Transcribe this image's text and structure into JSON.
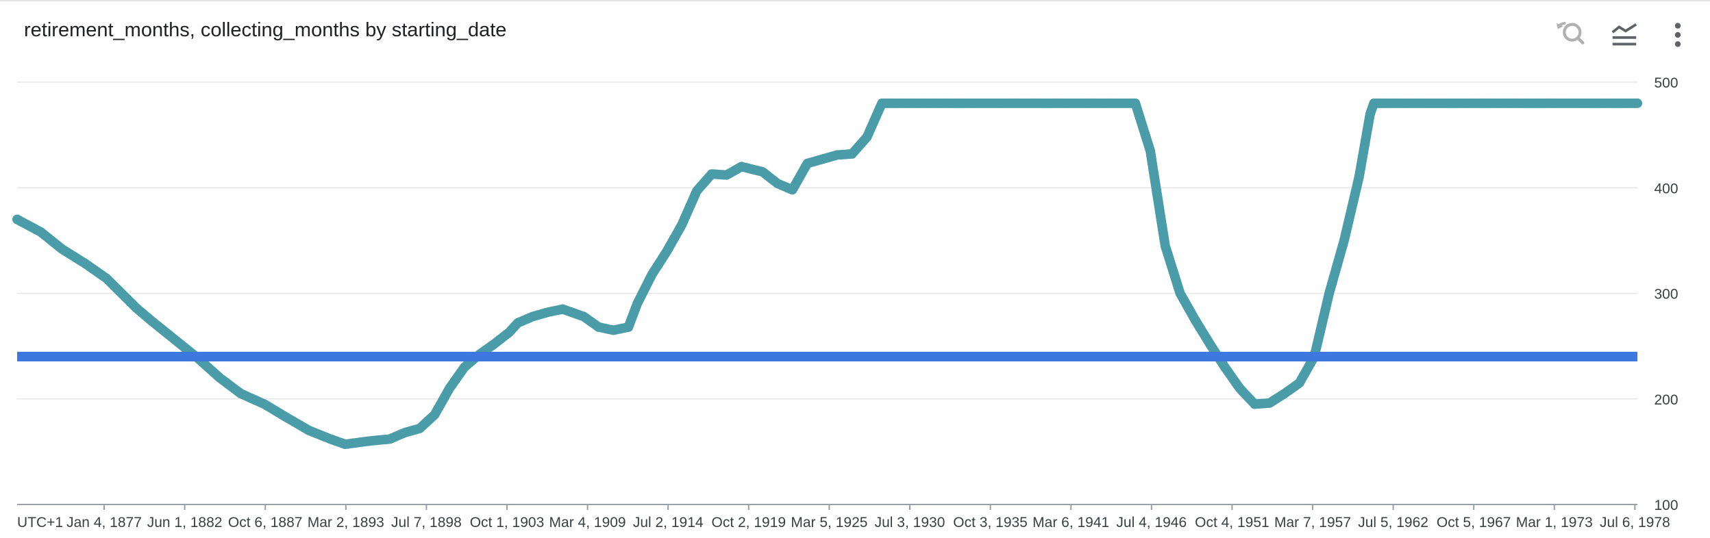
{
  "header": {
    "title": "retirement_months, collecting_months by starting_date",
    "icons": [
      "zoom-reset-icon",
      "series-toggle-icon",
      "more-vert-icon"
    ]
  },
  "colors": {
    "series_teal": "#4a9ca8",
    "series_blue": "#3c78e0",
    "grid": "#e6e6e6",
    "axis_text": "#3c4043",
    "icon_disabled": "#b0b0b0",
    "icon": "#5f6368"
  },
  "chart_data": {
    "type": "scatter",
    "title": "retirement_months, collecting_months by starting_date",
    "x_axis": {
      "type": "date",
      "timezone_label": "UTC+1",
      "tick_labels": [
        "Jan 4, 1877",
        "Jun 1, 1882",
        "Oct 6, 1887",
        "Mar 2, 1893",
        "Jul 7, 1898",
        "Oct 1, 1903",
        "Mar 4, 1909",
        "Jul 2, 1914",
        "Oct 2, 1919",
        "Mar 5, 1925",
        "Jul 3, 1930",
        "Oct 3, 1935",
        "Mar 6, 1941",
        "Jul 4, 1946",
        "Oct 4, 1951",
        "Mar 7, 1957",
        "Jul 5, 1962",
        "Oct 5, 1967",
        "Mar 1, 1973",
        "Jul 6, 1978"
      ],
      "range": [
        "1871-06-01",
        "1980-02-01"
      ]
    },
    "y_axis": {
      "position": "right",
      "tick_labels": [
        "500",
        "400",
        "300",
        "200",
        "100"
      ],
      "ticks": [
        500,
        400,
        300,
        200,
        100
      ],
      "ylim": [
        100,
        500
      ]
    },
    "grid": true,
    "series": [
      {
        "key": "teal",
        "style": "dense-dots",
        "points": [
          [
            "1871-06-01",
            370
          ],
          [
            "1873-01-01",
            358
          ],
          [
            "1874-06-01",
            342
          ],
          [
            "1876-01-01",
            328
          ],
          [
            "1877-06-01",
            314
          ],
          [
            "1878-06-01",
            300
          ],
          [
            "1879-06-01",
            286
          ],
          [
            "1880-06-01",
            274
          ],
          [
            "1882-01-01",
            256
          ],
          [
            "1883-06-01",
            240
          ],
          [
            "1885-01-01",
            220
          ],
          [
            "1886-06-01",
            205
          ],
          [
            "1888-01-01",
            195
          ],
          [
            "1889-06-01",
            183
          ],
          [
            "1891-01-01",
            170
          ],
          [
            "1892-06-01",
            162
          ],
          [
            "1893-06-01",
            157
          ],
          [
            "1895-01-01",
            160
          ],
          [
            "1896-06-01",
            162
          ],
          [
            "1897-06-01",
            168
          ],
          [
            "1898-06-01",
            172
          ],
          [
            "1899-06-01",
            185
          ],
          [
            "1900-06-01",
            210
          ],
          [
            "1901-06-01",
            230
          ],
          [
            "1902-06-01",
            242
          ],
          [
            "1903-06-01",
            252
          ],
          [
            "1904-06-01",
            263
          ],
          [
            "1905-01-01",
            272
          ],
          [
            "1906-01-01",
            278
          ],
          [
            "1907-01-01",
            282
          ],
          [
            "1908-01-01",
            285
          ],
          [
            "1909-06-01",
            278
          ],
          [
            "1910-06-01",
            268
          ],
          [
            "1911-06-01",
            265
          ],
          [
            "1912-06-01",
            268
          ],
          [
            "1913-01-01",
            290
          ],
          [
            "1914-01-01",
            318
          ],
          [
            "1915-01-01",
            340
          ],
          [
            "1916-01-01",
            365
          ],
          [
            "1917-01-01",
            397
          ],
          [
            "1918-01-01",
            413
          ],
          [
            "1919-01-01",
            412
          ],
          [
            "1920-01-01",
            420
          ],
          [
            "1921-06-01",
            415
          ],
          [
            "1922-06-01",
            404
          ],
          [
            "1923-06-01",
            398
          ],
          [
            "1924-06-01",
            423
          ],
          [
            "1925-06-01",
            427
          ],
          [
            "1926-06-01",
            431
          ],
          [
            "1927-06-01",
            432
          ],
          [
            "1928-06-01",
            448
          ],
          [
            "1929-06-01",
            480
          ],
          [
            "1935-01-01",
            480
          ],
          [
            "1940-01-01",
            480
          ],
          [
            "1945-01-01",
            480
          ],
          [
            "1946-06-01",
            480
          ],
          [
            "1947-06-01",
            435
          ],
          [
            "1948-06-01",
            345
          ],
          [
            "1949-06-01",
            300
          ],
          [
            "1950-06-01",
            275
          ],
          [
            "1951-06-01",
            252
          ],
          [
            "1952-06-01",
            230
          ],
          [
            "1953-06-01",
            210
          ],
          [
            "1954-06-01",
            195
          ],
          [
            "1955-06-01",
            196
          ],
          [
            "1956-06-01",
            205
          ],
          [
            "1957-06-01",
            215
          ],
          [
            "1958-06-01",
            240
          ],
          [
            "1959-06-01",
            300
          ],
          [
            "1960-06-01",
            350
          ],
          [
            "1961-06-01",
            410
          ],
          [
            "1962-03-01",
            470
          ],
          [
            "1962-06-01",
            480
          ],
          [
            "1970-01-01",
            480
          ],
          [
            "1980-02-01",
            480
          ]
        ]
      },
      {
        "key": "blue",
        "style": "line",
        "points": [
          [
            "1871-06-01",
            240
          ],
          [
            "1980-02-01",
            240
          ]
        ]
      }
    ]
  }
}
